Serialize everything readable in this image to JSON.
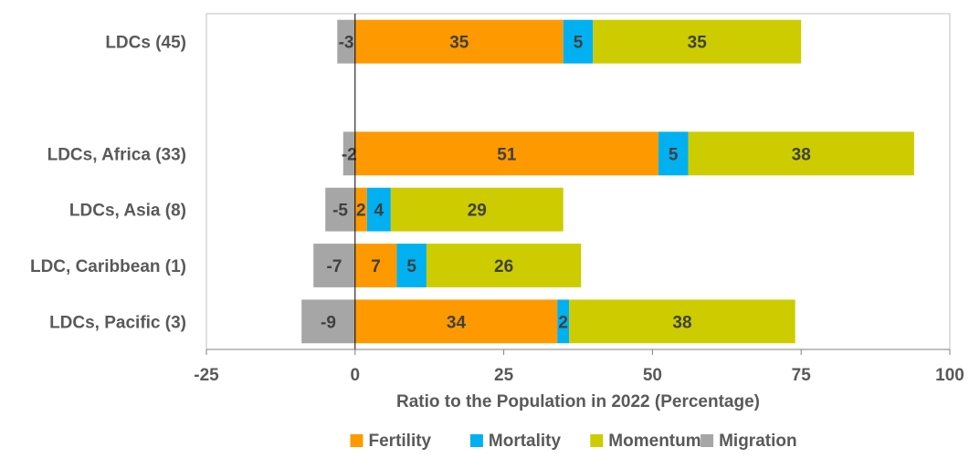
{
  "chart_data": {
    "type": "bar",
    "orientation": "horizontal",
    "stacked": true,
    "categories": [
      "LDCs (45)",
      "",
      "LDCs, Africa (33)",
      "LDCs, Asia (8)",
      "LDC, Caribbean (1)",
      "LDCs, Pacific (3)"
    ],
    "series": [
      {
        "name": "Fertility",
        "color": "#FF9900",
        "values": [
          35,
          null,
          51,
          2,
          7,
          34
        ]
      },
      {
        "name": "Mortality",
        "color": "#00B0F0",
        "values": [
          5,
          null,
          5,
          4,
          5,
          2
        ]
      },
      {
        "name": "Momentum",
        "color": "#CCCC00",
        "values": [
          35,
          null,
          38,
          29,
          26,
          38
        ]
      },
      {
        "name": "Migration",
        "color": "#A6A6A6",
        "values": [
          -3,
          null,
          -2,
          -5,
          -7,
          -9
        ]
      }
    ],
    "xlabel": "Ratio to the Population in 2022 (Percentage)",
    "ylabel": "",
    "xlim": [
      -25,
      100
    ],
    "xticks": [
      -25,
      0,
      25,
      50,
      75,
      100
    ],
    "grid": false,
    "legend_position": "bottom"
  }
}
